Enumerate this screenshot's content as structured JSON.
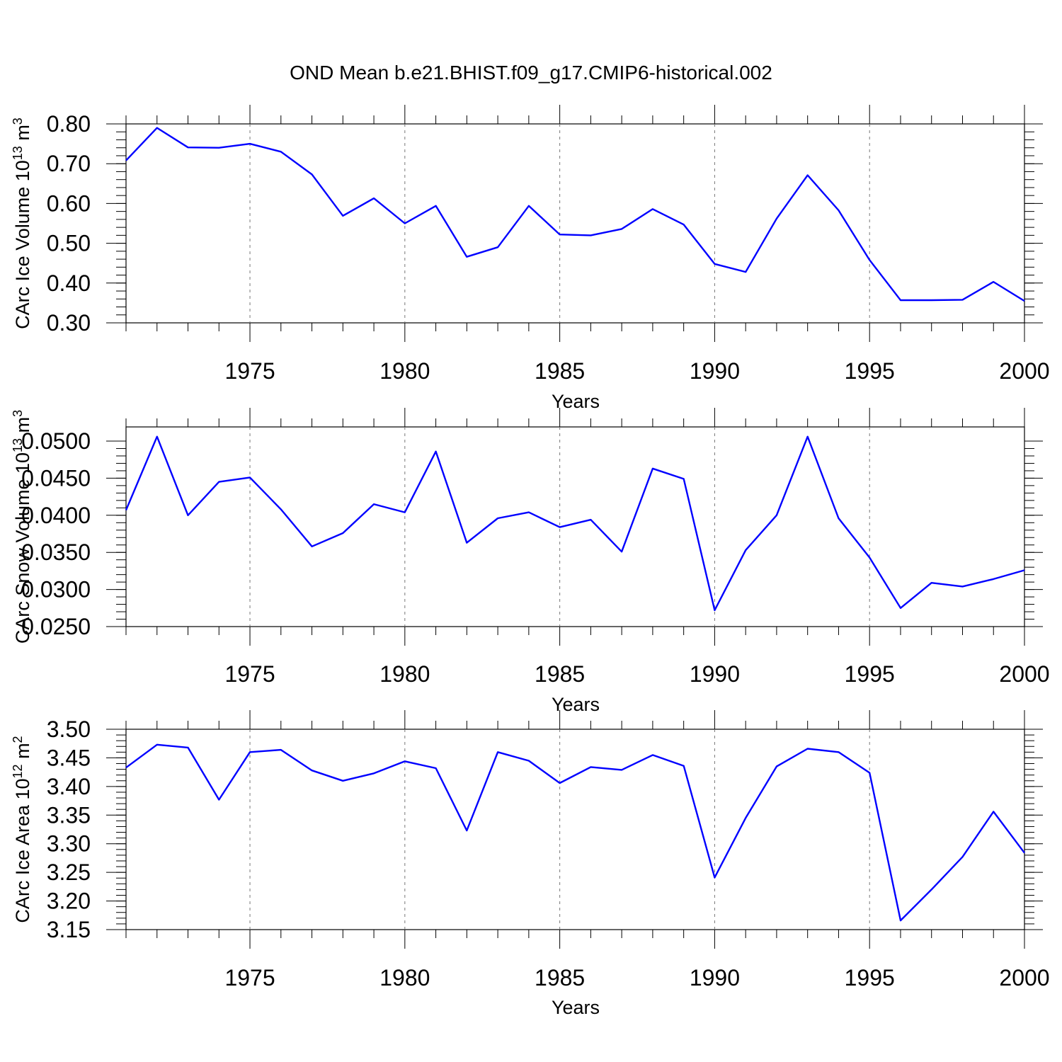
{
  "title": "OND Mean b.e21.BHIST.f09_g17.CMIP6-historical.002",
  "colors": {
    "line": "#0000ff"
  },
  "chart_data": [
    {
      "type": "line",
      "ylabel": "CArc Ice Volume 10",
      "ylabel_exponent": "13",
      "ylabel_unit": "m",
      "ylabel_unit_exponent": "3",
      "xlabel": "Years",
      "xlim": [
        1971,
        2000
      ],
      "ylim": [
        0.3,
        0.825
      ],
      "yticks": [
        "0.30",
        "0.40",
        "0.50",
        "0.60",
        "0.70",
        "0.80"
      ],
      "xticks": [
        "1975",
        "1980",
        "1985",
        "1990",
        "1995",
        "2000"
      ],
      "grid": "vertical dashed at labeled years",
      "x": [
        1971,
        1972,
        1973,
        1974,
        1975,
        1976,
        1977,
        1978,
        1979,
        1980,
        1981,
        1982,
        1983,
        1984,
        1985,
        1986,
        1987,
        1988,
        1989,
        1990,
        1991,
        1992,
        1993,
        1994,
        1995,
        1996,
        1997,
        1998,
        1999,
        2000
      ],
      "values": [
        0.708,
        0.79,
        0.741,
        0.74,
        0.75,
        0.73,
        0.673,
        0.569,
        0.613,
        0.55,
        0.594,
        0.466,
        0.49,
        0.594,
        0.522,
        0.52,
        0.536,
        0.586,
        0.547,
        0.448,
        0.428,
        0.562,
        0.671,
        0.583,
        0.458,
        0.357,
        0.357,
        0.358,
        0.403,
        0.355
      ]
    },
    {
      "type": "line",
      "ylabel": "CArc Snow Volume 10",
      "ylabel_exponent": "13",
      "ylabel_unit": "m",
      "ylabel_unit_exponent": "3",
      "xlabel": "Years",
      "xlim": [
        1971,
        2000
      ],
      "ylim": [
        0.024,
        0.052
      ],
      "yticks": [
        "0.0250",
        "0.0300",
        "0.0350",
        "0.0400",
        "0.0450",
        "0.0500"
      ],
      "xticks": [
        "1975",
        "1980",
        "1985",
        "1990",
        "1995",
        "2000"
      ],
      "grid": "vertical dashed at labeled years",
      "x": [
        1971,
        1972,
        1973,
        1974,
        1975,
        1976,
        1977,
        1978,
        1979,
        1980,
        1981,
        1982,
        1983,
        1984,
        1985,
        1986,
        1987,
        1988,
        1989,
        1990,
        1991,
        1992,
        1993,
        1994,
        1995,
        1996,
        1997,
        1998,
        1999,
        2000
      ],
      "values": [
        0.0407,
        0.0506,
        0.04,
        0.0445,
        0.0451,
        0.0408,
        0.0358,
        0.0376,
        0.0415,
        0.0404,
        0.0486,
        0.0363,
        0.0396,
        0.0404,
        0.0384,
        0.0394,
        0.0351,
        0.0463,
        0.0449,
        0.0272,
        0.0353,
        0.04,
        0.0506,
        0.0396,
        0.0343,
        0.0275,
        0.0309,
        0.0304,
        0.0314,
        0.0326
      ]
    },
    {
      "type": "line",
      "ylabel": "CArc Ice Area 10",
      "ylabel_exponent": "12",
      "ylabel_unit": "m",
      "ylabel_unit_exponent": "2",
      "xlabel": "Years",
      "xlim": [
        1971,
        2000
      ],
      "ylim": [
        3.15,
        3.5
      ],
      "yticks": [
        "3.15",
        "3.20",
        "3.25",
        "3.30",
        "3.35",
        "3.40",
        "3.45",
        "3.50"
      ],
      "xticks": [
        "1975",
        "1980",
        "1985",
        "1990",
        "1995",
        "2000"
      ],
      "grid": "vertical dashed at labeled years",
      "x": [
        1971,
        1972,
        1973,
        1974,
        1975,
        1976,
        1977,
        1978,
        1979,
        1980,
        1981,
        1982,
        1983,
        1984,
        1985,
        1986,
        1987,
        1988,
        1989,
        1990,
        1991,
        1992,
        1993,
        1994,
        1995,
        1996,
        1997,
        1998,
        1999,
        2000
      ],
      "values": [
        3.433,
        3.473,
        3.468,
        3.377,
        3.46,
        3.464,
        3.428,
        3.41,
        3.423,
        3.444,
        3.432,
        3.323,
        3.46,
        3.445,
        3.406,
        3.434,
        3.429,
        3.455,
        3.436,
        3.241,
        3.345,
        3.435,
        3.466,
        3.46,
        3.424,
        3.166,
        3.22,
        3.277,
        3.356,
        3.284
      ]
    }
  ]
}
